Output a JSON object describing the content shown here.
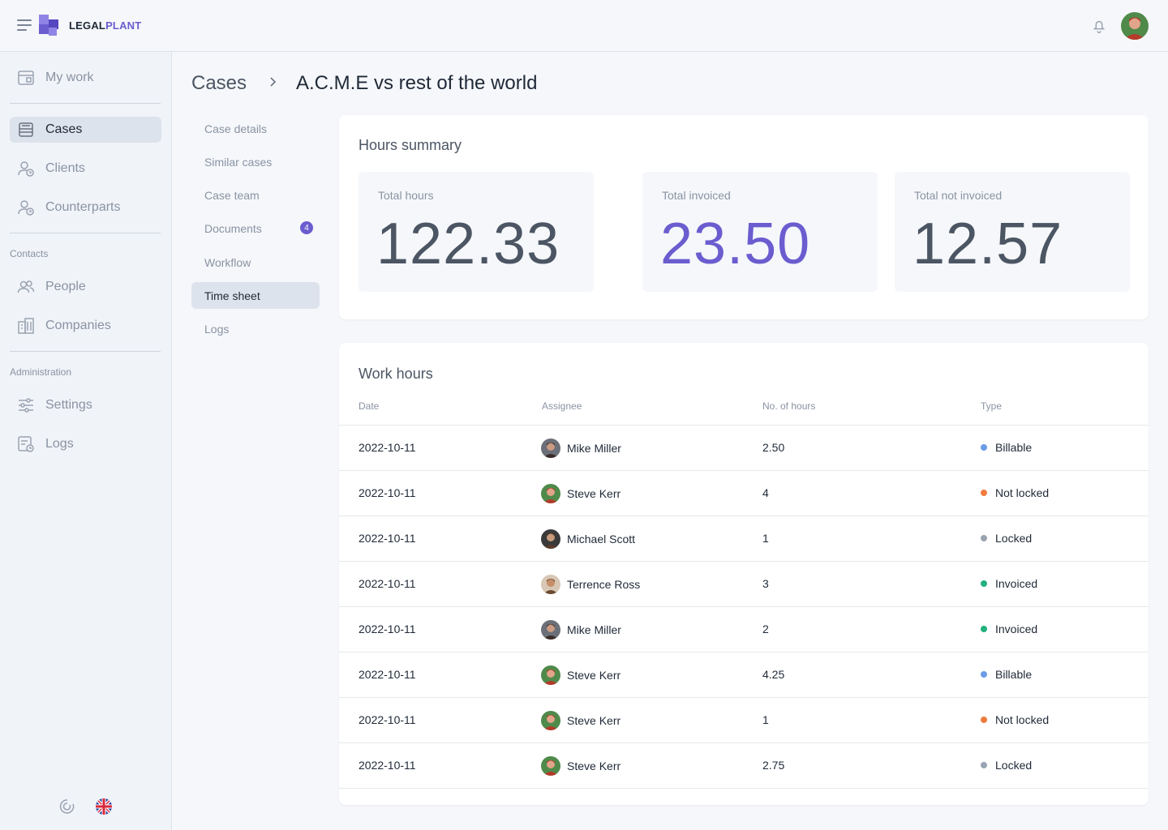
{
  "brand": {
    "name_part1": "LEGAL",
    "name_part2": "PLANT",
    "accent": "#6b5ccf"
  },
  "header": {
    "menu_icon": "hamburger-icon",
    "notification_icon": "bell-icon",
    "avatar": "user-avatar"
  },
  "sidebar": {
    "items": [
      {
        "label": "My work",
        "icon": "calendar-icon"
      },
      {
        "label": "Cases",
        "icon": "archive-icon",
        "active": true
      },
      {
        "label": "Clients",
        "icon": "client-icon"
      },
      {
        "label": "Counterparts",
        "icon": "counterpart-icon"
      }
    ],
    "contacts_title": "Contacts",
    "contacts": [
      {
        "label": "People",
        "icon": "people-icon"
      },
      {
        "label": "Companies",
        "icon": "building-icon"
      }
    ],
    "admin_title": "Administration",
    "admin": [
      {
        "label": "Settings",
        "icon": "sliders-icon"
      },
      {
        "label": "Logs",
        "icon": "log-icon"
      }
    ],
    "bottom_icons": [
      "spinner-icon",
      "uk-flag-icon"
    ]
  },
  "breadcrumb": {
    "root": "Cases",
    "current": "A.C.M.E vs rest of the world"
  },
  "subnav": [
    {
      "label": "Case details"
    },
    {
      "label": "Similar cases"
    },
    {
      "label": "Case team"
    },
    {
      "label": "Documents",
      "badge": "4"
    },
    {
      "label": "Workflow"
    },
    {
      "label": "Time sheet",
      "active": true
    },
    {
      "label": "Logs"
    }
  ],
  "hours_summary": {
    "title": "Hours summary",
    "stats": [
      {
        "label": "Total hours",
        "value": "122.33",
        "color": "#4b5563"
      },
      {
        "label": "Total invoiced",
        "value": "23.50",
        "color": "#6b5ccf"
      },
      {
        "label": "Total not invoiced",
        "value": "12.57",
        "color": "#4b5563"
      }
    ]
  },
  "work_hours": {
    "title": "Work hours",
    "columns": [
      "Date",
      "Assignee",
      "No. of hours",
      "Type"
    ],
    "rows": [
      {
        "date": "2022-10-11",
        "assignee": "Mike Miller",
        "hours": "2.50",
        "type": "Billable"
      },
      {
        "date": "2022-10-11",
        "assignee": "Steve Kerr",
        "hours": "4",
        "type": "Not locked"
      },
      {
        "date": "2022-10-11",
        "assignee": "Michael Scott",
        "hours": "1",
        "type": "Locked"
      },
      {
        "date": "2022-10-11",
        "assignee": "Terrence Ross",
        "hours": "3",
        "type": "Invoiced"
      },
      {
        "date": "2022-10-11",
        "assignee": "Mike Miller",
        "hours": "2",
        "type": "Invoiced"
      },
      {
        "date": "2022-10-11",
        "assignee": "Steve Kerr",
        "hours": "4.25",
        "type": "Billable"
      },
      {
        "date": "2022-10-11",
        "assignee": "Steve Kerr",
        "hours": "1",
        "type": "Not locked"
      },
      {
        "date": "2022-10-11",
        "assignee": "Steve Kerr",
        "hours": "2.75",
        "type": "Locked"
      }
    ],
    "type_colors": {
      "Billable": "#6b9be6",
      "Not locked": "#f07c3e",
      "Locked": "#9aa3b2",
      "Invoiced": "#22b07d"
    }
  }
}
